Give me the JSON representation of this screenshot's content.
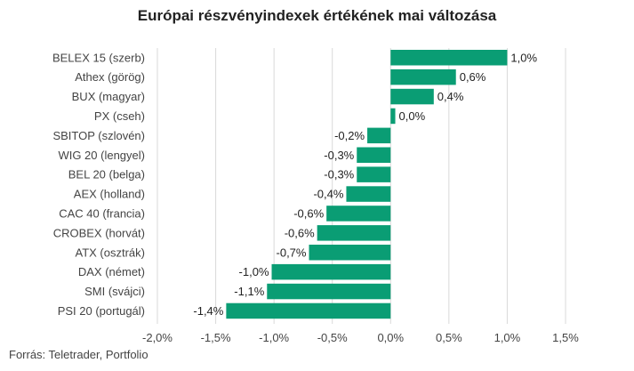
{
  "chart_data": {
    "type": "bar",
    "orientation": "horizontal",
    "title": "Európai részvényindexek értékének mai változása",
    "source": "Forrás: Teletrader, Portfolio",
    "categories": [
      "BELEX 15 (szerb)",
      "Athex (görög)",
      "BUX (magyar)",
      "PX (cseh)",
      "SBITOP (szlovén)",
      "WIG 20 (lengyel)",
      "BEL 20 (belga)",
      "AEX (holland)",
      "CAC 40 (francia)",
      "CROBEX (horvát)",
      "ATX (osztrák)",
      "DAX (német)",
      "SMI (svájci)",
      "PSI 20 (portugál)"
    ],
    "values": [
      1.0,
      0.56,
      0.37,
      0.04,
      -0.2,
      -0.29,
      -0.29,
      -0.38,
      -0.55,
      -0.63,
      -0.7,
      -1.02,
      -1.06,
      -1.41
    ],
    "value_labels": [
      "1,0%",
      "0,6%",
      "0,4%",
      "0,0%",
      "-0,2%",
      "-0,3%",
      "-0,3%",
      "-0,4%",
      "-0,6%",
      "-0,6%",
      "-0,7%",
      "-1,0%",
      "-1,1%",
      "-1,4%"
    ],
    "xticks": [
      -2.0,
      -1.5,
      -1.0,
      -0.5,
      0.0,
      0.5,
      1.0,
      1.5
    ],
    "xtick_labels": [
      "-2,0%",
      "-1,5%",
      "-1,0%",
      "-0,5%",
      "0,0%",
      "0,5%",
      "1,0%",
      "1,5%"
    ],
    "xlim": [
      -2.0,
      1.5
    ],
    "grid": true,
    "bar_color": "#0a9d74",
    "grid_color": "#d9d9d9"
  }
}
